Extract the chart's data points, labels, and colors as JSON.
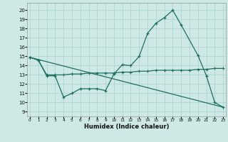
{
  "xlabel": "Humidex (Indice chaleur)",
  "bg_color": "#cde8e5",
  "line_color": "#1e6e63",
  "grid_color": "#aed4d0",
  "x_ticks": [
    0,
    1,
    2,
    3,
    4,
    5,
    6,
    7,
    8,
    9,
    10,
    11,
    12,
    13,
    14,
    15,
    16,
    17,
    18,
    19,
    20,
    21,
    22,
    23
  ],
  "y_ticks": [
    9,
    10,
    11,
    12,
    13,
    14,
    15,
    16,
    17,
    18,
    19,
    20
  ],
  "xlim": [
    -0.3,
    23.3
  ],
  "ylim": [
    8.5,
    20.8
  ],
  "series1_x": [
    0,
    1,
    2,
    3,
    4,
    5,
    6,
    7,
    8,
    9,
    10,
    11,
    12,
    13,
    14,
    15,
    16,
    17,
    18,
    20,
    21,
    22,
    23
  ],
  "series1_y": [
    14.9,
    14.6,
    12.9,
    12.9,
    10.6,
    11.0,
    11.5,
    11.5,
    11.5,
    11.3,
    13.1,
    14.1,
    14.0,
    15.0,
    17.5,
    18.6,
    19.2,
    20.0,
    18.4,
    15.1,
    12.9,
    10.0,
    9.5
  ],
  "series2_x": [
    0,
    1,
    2,
    3,
    4,
    5,
    6,
    7,
    8,
    9,
    10,
    11,
    12,
    13,
    14,
    15,
    16,
    17,
    18,
    19,
    20,
    21,
    22,
    23
  ],
  "series2_y": [
    14.9,
    14.6,
    13.0,
    13.0,
    13.0,
    13.1,
    13.1,
    13.2,
    13.2,
    13.2,
    13.2,
    13.3,
    13.3,
    13.4,
    13.4,
    13.5,
    13.5,
    13.5,
    13.5,
    13.5,
    13.6,
    13.6,
    13.7,
    13.7
  ],
  "series3_x": [
    0,
    23
  ],
  "series3_y": [
    14.9,
    9.5
  ]
}
